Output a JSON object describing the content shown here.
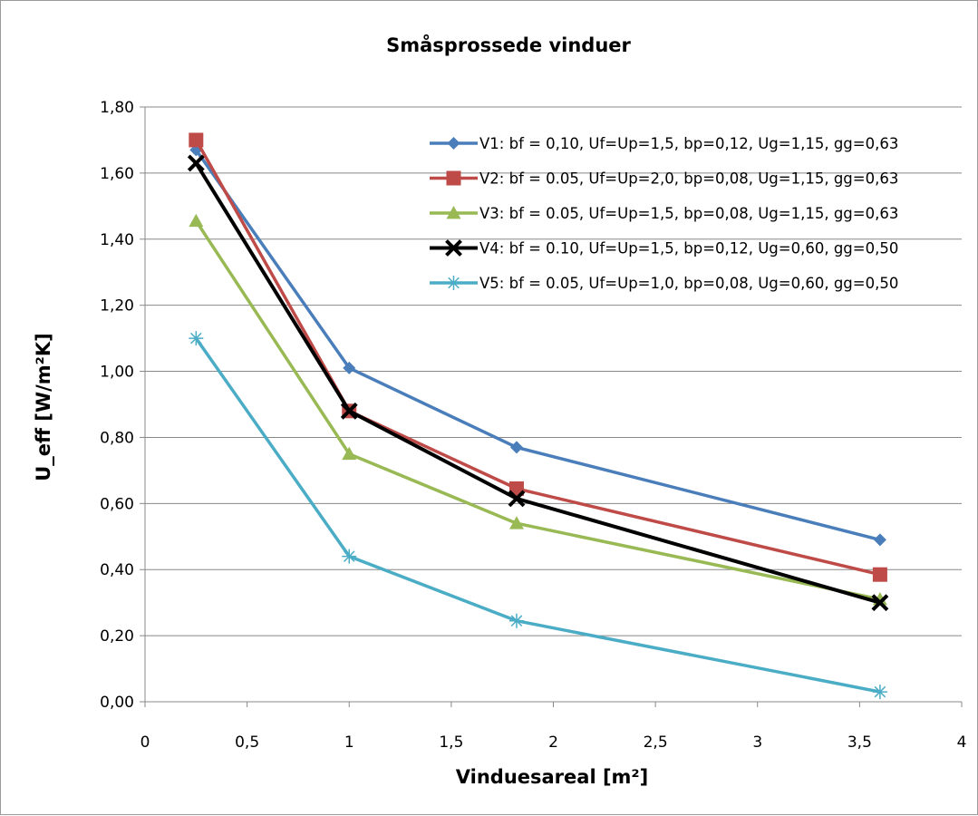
{
  "chart_data": {
    "type": "line",
    "title": "Småsprossede vinduer",
    "xlabel": "Vinduesareal [m²]",
    "ylabel": "U_eff  [W/m²K]",
    "xlim": [
      0,
      4
    ],
    "ylim": [
      0,
      1.8
    ],
    "x_ticks": [
      "0",
      "0,5",
      "1",
      "1,5",
      "2",
      "2,5",
      "3",
      "3,5",
      "4"
    ],
    "y_ticks": [
      "0,00",
      "0,20",
      "0,40",
      "0,60",
      "0,80",
      "1,00",
      "1,20",
      "1,40",
      "1,60",
      "1,80"
    ],
    "grid": "horizontal",
    "legend_position": "top-right",
    "x": [
      0.25,
      1.0,
      1.82,
      3.6
    ],
    "series": [
      {
        "name": "V1: bf = 0,10, Uf=Up=1,5, bp=0,12, Ug=1,15, gg=0,63",
        "color": "#4a7ebb",
        "marker": "diamond",
        "values": [
          1.67,
          1.01,
          0.77,
          0.49
        ]
      },
      {
        "name": "V2: bf = 0.05, Uf=Up=2,0, bp=0,08, Ug=1,15, gg=0,63",
        "color": "#be4b48",
        "marker": "square",
        "values": [
          1.7,
          0.88,
          0.645,
          0.385
        ]
      },
      {
        "name": "V3: bf = 0.05, Uf=Up=1,5, bp=0,08, Ug=1,15, gg=0,63",
        "color": "#98b954",
        "marker": "triangle",
        "values": [
          1.455,
          0.75,
          0.54,
          0.31
        ]
      },
      {
        "name": "V4: bf = 0.10, Uf=Up=1,5, bp=0,12, Ug=0,60, gg=0,50",
        "color": "#000000",
        "marker": "x",
        "values": [
          1.63,
          0.88,
          0.615,
          0.3
        ]
      },
      {
        "name": "V5: bf = 0.05, Uf=Up=1,0, bp=0,08, Ug=0,60, gg=0,50",
        "color": "#4bacc6",
        "marker": "star",
        "values": [
          1.1,
          0.44,
          0.245,
          0.03
        ]
      }
    ]
  }
}
